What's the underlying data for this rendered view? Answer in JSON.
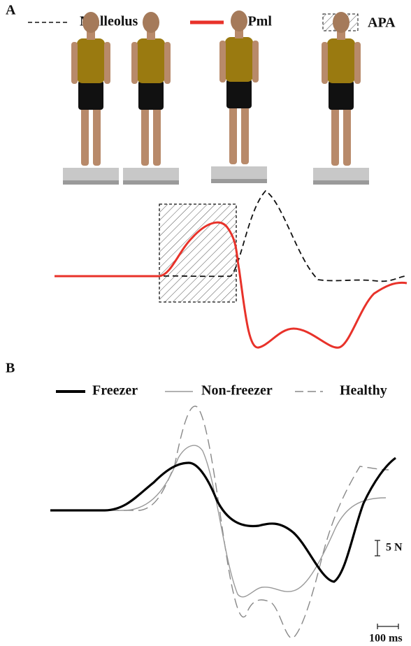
{
  "panel_a": {
    "label": "A",
    "legend": [
      "Malleolus",
      "CoPml",
      "APA"
    ]
  },
  "panel_b": {
    "label": "B",
    "legend": [
      "Freezer",
      "Non-freezer",
      "Healthy"
    ],
    "scale_bars": [
      "5 N",
      "100 ms"
    ]
  }
}
